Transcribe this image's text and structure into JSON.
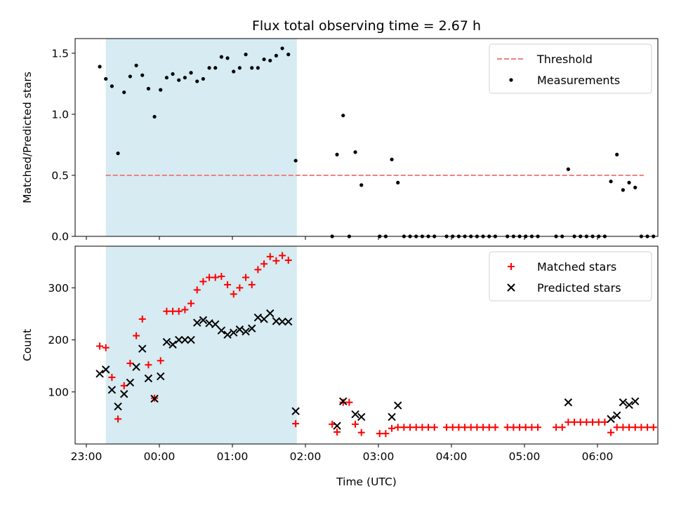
{
  "chart_data": [
    {
      "type": "scatter",
      "title": "Flux total observing time = 2.67 h",
      "xlabel": "",
      "ylabel": "Matched/Predicted stars",
      "xlim": [
        "23:00",
        "06:55"
      ],
      "ylim": [
        0,
        1.62
      ],
      "yticks": [
        0.0,
        0.5,
        1.0,
        1.5
      ],
      "yticklabels": [
        "0.0",
        "0.5",
        "1.0",
        "1.5"
      ],
      "shaded_region": {
        "start": "23:16",
        "end": "01:53",
        "color": "#add8e6"
      },
      "legend_position": "top-right",
      "threshold": {
        "name": "Threshold",
        "y": 0.5,
        "x_start": "23:16",
        "x_end": "06:38",
        "color": "#f08080",
        "style": "dashed"
      },
      "series": [
        {
          "name": "Measurements",
          "marker": "dot",
          "color": "#000000",
          "points": [
            [
              "23:11",
              1.39
            ],
            [
              "23:16",
              1.29
            ],
            [
              "23:21",
              1.23
            ],
            [
              "23:26",
              0.68
            ],
            [
              "23:31",
              1.18
            ],
            [
              "23:36",
              1.31
            ],
            [
              "23:41",
              1.4
            ],
            [
              "23:46",
              1.32
            ],
            [
              "23:51",
              1.21
            ],
            [
              "23:56",
              0.98
            ],
            [
              "00:01",
              1.2
            ],
            [
              "00:06",
              1.3
            ],
            [
              "00:11",
              1.33
            ],
            [
              "00:16",
              1.28
            ],
            [
              "00:21",
              1.3
            ],
            [
              "00:26",
              1.34
            ],
            [
              "00:31",
              1.27
            ],
            [
              "00:36",
              1.29
            ],
            [
              "00:41",
              1.38
            ],
            [
              "00:46",
              1.38
            ],
            [
              "00:51",
              1.47
            ],
            [
              "00:56",
              1.46
            ],
            [
              "01:01",
              1.35
            ],
            [
              "01:06",
              1.38
            ],
            [
              "01:11",
              1.49
            ],
            [
              "01:16",
              1.38
            ],
            [
              "01:21",
              1.38
            ],
            [
              "01:26",
              1.45
            ],
            [
              "01:31",
              1.44
            ],
            [
              "01:36",
              1.48
            ],
            [
              "01:41",
              1.54
            ],
            [
              "01:46",
              1.49
            ],
            [
              "01:52",
              0.62
            ],
            [
              "02:22",
              0.0
            ],
            [
              "02:26",
              0.67
            ],
            [
              "02:31",
              0.99
            ],
            [
              "02:36",
              0.0
            ],
            [
              "02:41",
              0.69
            ],
            [
              "02:46",
              0.42
            ],
            [
              "03:01",
              0.0
            ],
            [
              "03:06",
              0.0
            ],
            [
              "03:11",
              0.63
            ],
            [
              "03:16",
              0.44
            ],
            [
              "03:21",
              0.0
            ],
            [
              "03:26",
              0.0
            ],
            [
              "03:31",
              0.0
            ],
            [
              "03:36",
              0.0
            ],
            [
              "03:41",
              0.0
            ],
            [
              "03:46",
              0.0
            ],
            [
              "03:56",
              0.0
            ],
            [
              "04:01",
              0.0
            ],
            [
              "04:06",
              0.0
            ],
            [
              "04:11",
              0.0
            ],
            [
              "04:16",
              0.0
            ],
            [
              "04:21",
              0.0
            ],
            [
              "04:26",
              0.0
            ],
            [
              "04:31",
              0.0
            ],
            [
              "04:36",
              0.0
            ],
            [
              "04:46",
              0.0
            ],
            [
              "04:51",
              0.0
            ],
            [
              "04:56",
              0.0
            ],
            [
              "05:01",
              0.0
            ],
            [
              "05:06",
              0.0
            ],
            [
              "05:11",
              0.0
            ],
            [
              "05:26",
              0.0
            ],
            [
              "05:31",
              0.0
            ],
            [
              "05:36",
              0.55
            ],
            [
              "05:41",
              0.0
            ],
            [
              "05:46",
              0.0
            ],
            [
              "05:51",
              0.0
            ],
            [
              "05:56",
              0.0
            ],
            [
              "06:01",
              0.0
            ],
            [
              "06:06",
              0.0
            ],
            [
              "06:11",
              0.45
            ],
            [
              "06:16",
              0.67
            ],
            [
              "06:21",
              0.38
            ],
            [
              "06:26",
              0.44
            ],
            [
              "06:31",
              0.4
            ],
            [
              "06:36",
              0.0
            ],
            [
              "06:41",
              0.0
            ],
            [
              "06:46",
              0.0
            ]
          ]
        }
      ]
    },
    {
      "type": "scatter",
      "title": "",
      "xlabel": "Time (UTC)",
      "ylabel": "Count",
      "xlim": [
        "23:00",
        "06:55"
      ],
      "ylim": [
        0,
        380
      ],
      "yticks": [
        100,
        200,
        300
      ],
      "yticklabels": [
        "100",
        "200",
        "300"
      ],
      "xticks": [
        "23:00",
        "00:00",
        "01:00",
        "02:00",
        "03:00",
        "04:00",
        "05:00",
        "06:00"
      ],
      "xticklabels": [
        "23:00",
        "00:00",
        "01:00",
        "02:00",
        "03:00",
        "04:00",
        "05:00",
        "06:00"
      ],
      "shaded_region": {
        "start": "23:16",
        "end": "01:53",
        "color": "#add8e6"
      },
      "legend_position": "top-right",
      "series": [
        {
          "name": "Matched stars",
          "marker": "plus",
          "color": "#ff0000",
          "points": [
            [
              "23:11",
              188
            ],
            [
              "23:16",
              185
            ],
            [
              "23:21",
              128
            ],
            [
              "23:26",
              48
            ],
            [
              "23:31",
              112
            ],
            [
              "23:36",
              155
            ],
            [
              "23:41",
              208
            ],
            [
              "23:46",
              240
            ],
            [
              "23:51",
              152
            ],
            [
              "23:56",
              88
            ],
            [
              "00:01",
              160
            ],
            [
              "00:06",
              255
            ],
            [
              "00:11",
              255
            ],
            [
              "00:16",
              255
            ],
            [
              "00:21",
              258
            ],
            [
              "00:26",
              270
            ],
            [
              "00:31",
              296
            ],
            [
              "00:36",
              312
            ],
            [
              "00:41",
              320
            ],
            [
              "00:46",
              320
            ],
            [
              "00:51",
              322
            ],
            [
              "00:56",
              306
            ],
            [
              "01:01",
              288
            ],
            [
              "01:06",
              300
            ],
            [
              "01:11",
              320
            ],
            [
              "01:16",
              306
            ],
            [
              "01:21",
              335
            ],
            [
              "01:26",
              346
            ],
            [
              "01:31",
              360
            ],
            [
              "01:36",
              352
            ],
            [
              "01:41",
              362
            ],
            [
              "01:46",
              353
            ],
            [
              "01:52",
              39
            ],
            [
              "02:22",
              38
            ],
            [
              "02:26",
              23
            ],
            [
              "02:31",
              80
            ],
            [
              "02:36",
              80
            ],
            [
              "02:41",
              38
            ],
            [
              "02:46",
              22
            ],
            [
              "03:01",
              20
            ],
            [
              "03:06",
              20
            ],
            [
              "03:11",
              30
            ],
            [
              "03:16",
              32
            ],
            [
              "03:21",
              32
            ],
            [
              "03:26",
              32
            ],
            [
              "03:31",
              32
            ],
            [
              "03:36",
              32
            ],
            [
              "03:41",
              32
            ],
            [
              "03:46",
              32
            ],
            [
              "03:56",
              32
            ],
            [
              "04:01",
              32
            ],
            [
              "04:06",
              32
            ],
            [
              "04:11",
              32
            ],
            [
              "04:16",
              32
            ],
            [
              "04:21",
              32
            ],
            [
              "04:26",
              32
            ],
            [
              "04:31",
              32
            ],
            [
              "04:36",
              32
            ],
            [
              "04:46",
              32
            ],
            [
              "04:51",
              32
            ],
            [
              "04:56",
              32
            ],
            [
              "05:01",
              32
            ],
            [
              "05:06",
              32
            ],
            [
              "05:11",
              32
            ],
            [
              "05:26",
              32
            ],
            [
              "05:31",
              32
            ],
            [
              "05:36",
              42
            ],
            [
              "05:41",
              42
            ],
            [
              "05:46",
              42
            ],
            [
              "05:51",
              42
            ],
            [
              "05:56",
              42
            ],
            [
              "06:01",
              42
            ],
            [
              "06:06",
              42
            ],
            [
              "06:11",
              22
            ],
            [
              "06:16",
              32
            ],
            [
              "06:21",
              32
            ],
            [
              "06:26",
              32
            ],
            [
              "06:31",
              32
            ],
            [
              "06:36",
              32
            ],
            [
              "06:41",
              32
            ],
            [
              "06:46",
              32
            ]
          ]
        },
        {
          "name": "Predicted stars",
          "marker": "x",
          "color": "#000000",
          "points": [
            [
              "23:11",
              135
            ],
            [
              "23:16",
              143
            ],
            [
              "23:21",
              104
            ],
            [
              "23:26",
              72
            ],
            [
              "23:31",
              96
            ],
            [
              "23:36",
              118
            ],
            [
              "23:41",
              148
            ],
            [
              "23:46",
              183
            ],
            [
              "23:51",
              126
            ],
            [
              "23:56",
              87
            ],
            [
              "00:01",
              130
            ],
            [
              "00:06",
              196
            ],
            [
              "00:11",
              191
            ],
            [
              "00:16",
              200
            ],
            [
              "00:21",
              200
            ],
            [
              "00:26",
              200
            ],
            [
              "00:31",
              233
            ],
            [
              "00:36",
              238
            ],
            [
              "00:41",
              232
            ],
            [
              "00:46",
              230
            ],
            [
              "00:51",
              218
            ],
            [
              "00:56",
              210
            ],
            [
              "01:01",
              214
            ],
            [
              "01:06",
              220
            ],
            [
              "01:11",
              216
            ],
            [
              "01:16",
              222
            ],
            [
              "01:21",
              243
            ],
            [
              "01:26",
              240
            ],
            [
              "01:31",
              251
            ],
            [
              "01:36",
              236
            ],
            [
              "01:41",
              235
            ],
            [
              "01:46",
              235
            ],
            [
              "01:52",
              63
            ],
            [
              "02:26",
              35
            ],
            [
              "02:31",
              82
            ],
            [
              "02:41",
              57
            ],
            [
              "02:46",
              52
            ],
            [
              "03:11",
              52
            ],
            [
              "03:16",
              74
            ],
            [
              "05:36",
              80
            ],
            [
              "06:11",
              48
            ],
            [
              "06:16",
              55
            ],
            [
              "06:21",
              80
            ],
            [
              "06:26",
              75
            ],
            [
              "06:31",
              82
            ]
          ]
        }
      ]
    }
  ]
}
